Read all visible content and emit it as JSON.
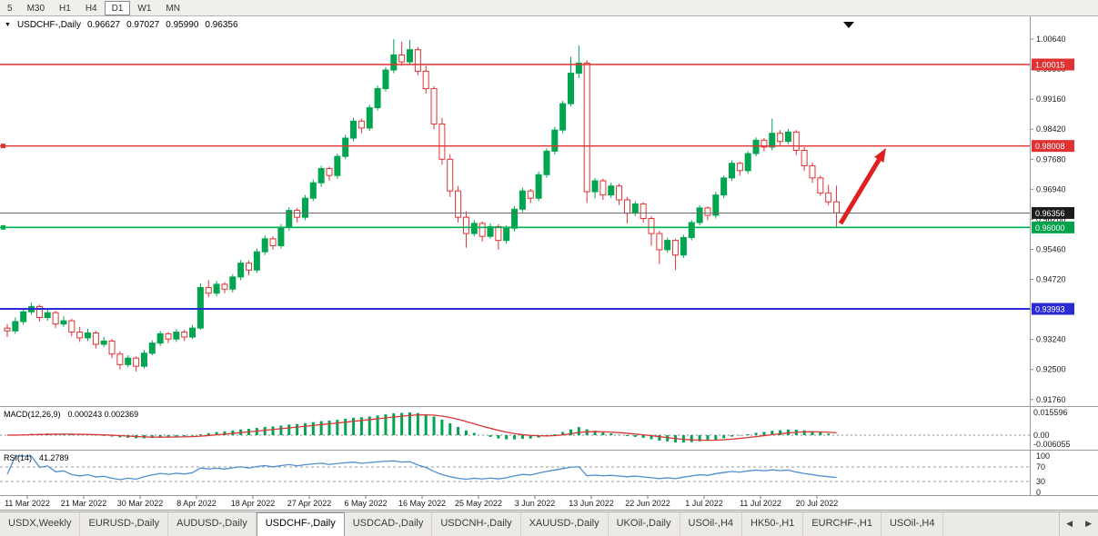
{
  "toolbar": {
    "timeframes": [
      {
        "label": "5",
        "active": false
      },
      {
        "label": "M30",
        "active": false
      },
      {
        "label": "H1",
        "active": false
      },
      {
        "label": "H4",
        "active": false
      },
      {
        "label": "D1",
        "active": true
      },
      {
        "label": "W1",
        "active": false
      },
      {
        "label": "MN",
        "active": false
      }
    ]
  },
  "header": {
    "symbol": "USDCHF-,Daily",
    "open": "0.96627",
    "high": "0.97027",
    "low": "0.95990",
    "close": "0.96356"
  },
  "chart_data": {
    "type": "candlestick",
    "symbol": "USDCHF",
    "timeframe": "Daily",
    "ylim": [
      0.9176,
      1.009
    ],
    "colors": {
      "up": "#00A551",
      "down": "#E03232",
      "signal": "#D93636",
      "rsi": "#4E8FD0",
      "level_gray": "#6a6a6a"
    },
    "y_ticks": [
      "1.00640",
      "0.99900",
      "0.99160",
      "0.98420",
      "0.97680",
      "0.96940",
      "0.96200",
      "0.95460",
      "0.94720",
      "0.93980",
      "0.93240",
      "0.92500",
      "0.91760"
    ],
    "x_ticks": [
      "11 Mar 2022",
      "21 Mar 2022",
      "30 Mar 2022",
      "8 Apr 2022",
      "18 Apr 2022",
      "27 Apr 2022",
      "6 May 2022",
      "16 May 2022",
      "25 May 2022",
      "3 Jun 2022",
      "13 Jun 2022",
      "22 Jun 2022",
      "1 Jul 2022",
      "11 Jul 2022",
      "20 Jul 2022"
    ],
    "levels": [
      {
        "label": "1.00015",
        "value": 1.00015,
        "color": "#E03232",
        "tag": "#E03232",
        "width": 1.4,
        "handle": false
      },
      {
        "label": "0.98008",
        "value": 0.98008,
        "color": "#E03232",
        "tag": "#E03232",
        "width": 1.4,
        "handle": true
      },
      {
        "label": "0.96356",
        "value": 0.96356,
        "color": "#6a6a6a",
        "tag": "#1c1c1c",
        "width": 1,
        "handle": false
      },
      {
        "label": "0.96000",
        "value": 0.96,
        "color": "#00B050",
        "tag": "#00A14B",
        "width": 1.6,
        "handle": true
      },
      {
        "label": "0.93993",
        "value": 0.93993,
        "color": "#2B2BD4",
        "tag": "#2B2BD4",
        "width": 2,
        "handle": false
      }
    ],
    "annotations": [
      {
        "type": "arrow",
        "color": "#E02020",
        "from": [
          924,
          246
        ],
        "to": [
          974,
          163
        ]
      }
    ],
    "candles": [
      [
        0.9352,
        0.9362,
        0.933,
        0.9345
      ],
      [
        0.9345,
        0.9378,
        0.9338,
        0.9368
      ],
      [
        0.9368,
        0.94,
        0.936,
        0.9392
      ],
      [
        0.9392,
        0.9415,
        0.9385,
        0.9405
      ],
      [
        0.9405,
        0.941,
        0.9368,
        0.9378
      ],
      [
        0.9378,
        0.9398,
        0.937,
        0.939
      ],
      [
        0.939,
        0.9395,
        0.9352,
        0.9362
      ],
      [
        0.9362,
        0.9382,
        0.9355,
        0.937
      ],
      [
        0.937,
        0.9375,
        0.9332,
        0.9342
      ],
      [
        0.9342,
        0.9355,
        0.9318,
        0.9328
      ],
      [
        0.9328,
        0.935,
        0.932,
        0.934
      ],
      [
        0.934,
        0.9345,
        0.9302,
        0.9312
      ],
      [
        0.9312,
        0.933,
        0.9305,
        0.932
      ],
      [
        0.932,
        0.9325,
        0.9278,
        0.9288
      ],
      [
        0.9288,
        0.9295,
        0.925,
        0.9262
      ],
      [
        0.9262,
        0.9285,
        0.9255,
        0.9278
      ],
      [
        0.9278,
        0.9282,
        0.9245,
        0.9258
      ],
      [
        0.9258,
        0.9298,
        0.9252,
        0.929
      ],
      [
        0.929,
        0.9322,
        0.9285,
        0.9315
      ],
      [
        0.9315,
        0.9345,
        0.9308,
        0.9338
      ],
      [
        0.9338,
        0.9342,
        0.9315,
        0.9325
      ],
      [
        0.9325,
        0.935,
        0.9318,
        0.9342
      ],
      [
        0.9342,
        0.9348,
        0.932,
        0.933
      ],
      [
        0.933,
        0.936,
        0.9325,
        0.9352
      ],
      [
        0.9352,
        0.9462,
        0.9348,
        0.9452
      ],
      [
        0.9452,
        0.947,
        0.9428,
        0.9438
      ],
      [
        0.9438,
        0.9468,
        0.943,
        0.946
      ],
      [
        0.946,
        0.9465,
        0.9438,
        0.9448
      ],
      [
        0.9448,
        0.9485,
        0.944,
        0.9478
      ],
      [
        0.9478,
        0.952,
        0.947,
        0.9512
      ],
      [
        0.9512,
        0.9518,
        0.9482,
        0.9495
      ],
      [
        0.9495,
        0.9548,
        0.9488,
        0.954
      ],
      [
        0.954,
        0.958,
        0.9532,
        0.9572
      ],
      [
        0.9572,
        0.9578,
        0.9545,
        0.9555
      ],
      [
        0.9555,
        0.9608,
        0.9548,
        0.96
      ],
      [
        0.96,
        0.965,
        0.9592,
        0.9642
      ],
      [
        0.9642,
        0.9648,
        0.9612,
        0.9625
      ],
      [
        0.9625,
        0.968,
        0.9618,
        0.9672
      ],
      [
        0.9672,
        0.9718,
        0.9665,
        0.971
      ],
      [
        0.971,
        0.9752,
        0.97,
        0.9745
      ],
      [
        0.9745,
        0.975,
        0.9715,
        0.9728
      ],
      [
        0.9728,
        0.9782,
        0.972,
        0.9775
      ],
      [
        0.9775,
        0.9828,
        0.9768,
        0.982
      ],
      [
        0.982,
        0.987,
        0.9812,
        0.9862
      ],
      [
        0.9862,
        0.9868,
        0.9832,
        0.9845
      ],
      [
        0.9845,
        0.9902,
        0.9838,
        0.9895
      ],
      [
        0.9895,
        0.995,
        0.9888,
        0.9942
      ],
      [
        0.9942,
        0.9995,
        0.9935,
        0.9988
      ],
      [
        0.9988,
        1.0064,
        0.998,
        1.0025
      ],
      [
        1.0025,
        1.0058,
        0.9998,
        1.0008
      ],
      [
        1.0008,
        1.0062,
        1.0,
        1.0038
      ],
      [
        1.0038,
        1.0045,
        0.9975,
        0.9985
      ],
      [
        0.9985,
        0.9998,
        0.993,
        0.9942
      ],
      [
        0.9942,
        0.9948,
        0.9842,
        0.9855
      ],
      [
        0.9855,
        0.987,
        0.9755,
        0.9768
      ],
      [
        0.9768,
        0.978,
        0.9675,
        0.969
      ],
      [
        0.969,
        0.9702,
        0.9612,
        0.9625
      ],
      [
        0.9625,
        0.964,
        0.955,
        0.9585
      ],
      [
        0.9585,
        0.9618,
        0.9578,
        0.961
      ],
      [
        0.961,
        0.9615,
        0.9565,
        0.9578
      ],
      [
        0.9578,
        0.961,
        0.9572,
        0.9602
      ],
      [
        0.9602,
        0.9608,
        0.9545,
        0.9568
      ],
      [
        0.9568,
        0.9605,
        0.956,
        0.9598
      ],
      [
        0.9598,
        0.9652,
        0.959,
        0.9645
      ],
      [
        0.9645,
        0.9698,
        0.9638,
        0.969
      ],
      [
        0.969,
        0.9695,
        0.966,
        0.9672
      ],
      [
        0.9672,
        0.9738,
        0.9665,
        0.973
      ],
      [
        0.973,
        0.9795,
        0.9722,
        0.9788
      ],
      [
        0.9788,
        0.9848,
        0.978,
        0.984
      ],
      [
        0.984,
        0.9912,
        0.9832,
        0.9905
      ],
      [
        0.9905,
        1.002,
        0.9898,
        0.998
      ],
      [
        0.998,
        1.0049,
        0.9968,
        1.0005
      ],
      [
        1.0005,
        1.0012,
        0.966,
        0.9688
      ],
      [
        0.9688,
        0.9722,
        0.9672,
        0.9715
      ],
      [
        0.9715,
        0.972,
        0.9668,
        0.968
      ],
      [
        0.968,
        0.971,
        0.9672,
        0.9702
      ],
      [
        0.9702,
        0.9708,
        0.9655,
        0.9668
      ],
      [
        0.9668,
        0.9675,
        0.961,
        0.9635
      ],
      [
        0.9635,
        0.9665,
        0.9628,
        0.9658
      ],
      [
        0.9658,
        0.9662,
        0.9612,
        0.9622
      ],
      [
        0.9622,
        0.9628,
        0.9555,
        0.9585
      ],
      [
        0.9585,
        0.9592,
        0.951,
        0.9545
      ],
      [
        0.9545,
        0.9575,
        0.9538,
        0.9568
      ],
      [
        0.9568,
        0.9572,
        0.9495,
        0.9532
      ],
      [
        0.9532,
        0.9582,
        0.9525,
        0.9575
      ],
      [
        0.9575,
        0.9618,
        0.9568,
        0.9612
      ],
      [
        0.9612,
        0.9655,
        0.9605,
        0.9648
      ],
      [
        0.9648,
        0.9652,
        0.9618,
        0.963
      ],
      [
        0.963,
        0.9688,
        0.9622,
        0.968
      ],
      [
        0.968,
        0.9728,
        0.9672,
        0.9722
      ],
      [
        0.9722,
        0.9765,
        0.9715,
        0.9758
      ],
      [
        0.9758,
        0.9762,
        0.9728,
        0.974
      ],
      [
        0.974,
        0.9788,
        0.9732,
        0.9782
      ],
      [
        0.9782,
        0.9822,
        0.9775,
        0.9815
      ],
      [
        0.9815,
        0.982,
        0.9788,
        0.9798
      ],
      [
        0.9798,
        0.9868,
        0.979,
        0.9832
      ],
      [
        0.9832,
        0.984,
        0.98,
        0.9812
      ],
      [
        0.9812,
        0.9842,
        0.9805,
        0.9835
      ],
      [
        0.9835,
        0.984,
        0.9778,
        0.979
      ],
      [
        0.979,
        0.9798,
        0.974,
        0.9752
      ],
      [
        0.9752,
        0.976,
        0.971,
        0.9722
      ],
      [
        0.9722,
        0.9728,
        0.9678,
        0.9685
      ],
      [
        0.9685,
        0.9705,
        0.9655,
        0.9663
      ],
      [
        0.9663,
        0.9703,
        0.9599,
        0.9636
      ]
    ]
  },
  "macd_panel": {
    "title": "MACD(12,26,9)",
    "values": "0.000243 0.002369",
    "params": [
      12,
      26,
      9
    ],
    "axis": [
      "0.015596",
      "0.00",
      "-0.006055"
    ]
  },
  "rsi_panel": {
    "title": "RSI(14)",
    "value": "41.2789",
    "period": 14,
    "levels": [
      70,
      30
    ],
    "axis": [
      "100",
      "70",
      "30",
      "0"
    ]
  },
  "tabbar": {
    "scroll_left": "◀",
    "scroll_right": "▶",
    "tabs": [
      {
        "label": "USDX,Weekly",
        "active": false
      },
      {
        "label": "EURUSD-,Daily",
        "active": false
      },
      {
        "label": "AUDUSD-,Daily",
        "active": false
      },
      {
        "label": "USDCHF-,Daily",
        "active": true
      },
      {
        "label": "USDCAD-,Daily",
        "active": false
      },
      {
        "label": "USDCNH-,Daily",
        "active": false
      },
      {
        "label": "XAUUSD-,Daily",
        "active": false
      },
      {
        "label": "UKOil-,Daily",
        "active": false
      },
      {
        "label": "USOil-,H4",
        "active": false
      },
      {
        "label": "HK50-,H1",
        "active": false
      },
      {
        "label": "EURCHF-,H1",
        "active": false
      },
      {
        "label": "USOil-,H4",
        "active": false
      }
    ]
  }
}
